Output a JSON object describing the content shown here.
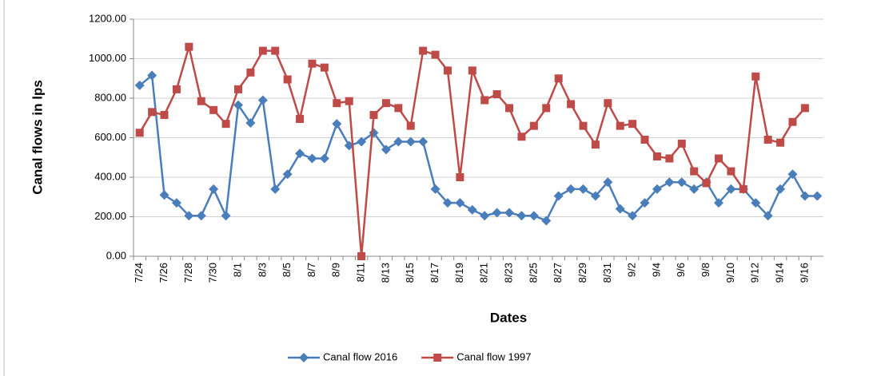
{
  "chart_data": {
    "type": "line",
    "y_label": "Canal flows in lps",
    "x_label": "Dates",
    "categories": [
      "7/24",
      null,
      "7/26",
      null,
      "7/28",
      null,
      "7/30",
      null,
      "8/1",
      null,
      "8/3",
      null,
      "8/5",
      null,
      "8/7",
      null,
      "8/9",
      null,
      "8/11",
      null,
      "8/13",
      null,
      "8/15",
      null,
      "8/17",
      null,
      "8/19",
      null,
      "8/21",
      null,
      "8/23",
      null,
      "8/25",
      null,
      "8/27",
      null,
      "8/29",
      null,
      "8/31",
      null,
      "9/2",
      null,
      "9/4",
      null,
      "9/6",
      null,
      "9/8",
      null,
      "9/10",
      null,
      "9/12",
      null,
      "9/14",
      null,
      "9/16",
      null
    ],
    "series": [
      {
        "name": "Canal flow 2016",
        "color": "#4a7ebb",
        "marker": "diamond",
        "values": [
          865,
          915,
          310,
          270,
          205,
          205,
          340,
          205,
          765,
          675,
          790,
          340,
          415,
          520,
          495,
          495,
          670,
          560,
          580,
          625,
          540,
          580,
          580,
          580,
          340,
          270,
          270,
          235,
          205,
          220,
          220,
          205,
          205,
          180,
          305,
          340,
          340,
          305,
          375,
          240,
          205,
          270,
          340,
          375,
          375,
          340,
          375,
          270,
          340,
          340,
          270,
          205,
          340,
          415,
          305,
          305
        ]
      },
      {
        "name": "Canal flow 1997",
        "color": "#be4b48",
        "marker": "square",
        "values": [
          625,
          730,
          715,
          845,
          1060,
          785,
          740,
          670,
          845,
          930,
          1040,
          1040,
          895,
          695,
          975,
          955,
          775,
          785,
          0,
          715,
          775,
          750,
          660,
          1040,
          1020,
          940,
          400,
          940,
          790,
          820,
          750,
          605,
          660,
          750,
          900,
          770,
          660,
          565,
          775,
          660,
          670,
          590,
          505,
          495,
          570,
          430,
          370,
          495,
          430,
          340,
          910,
          590,
          575,
          680,
          750,
          null
        ]
      }
    ],
    "ylim": [
      0,
      1200
    ],
    "yticks": [
      {
        "value": 0,
        "label": "0.00"
      },
      {
        "value": 200,
        "label": "200.00"
      },
      {
        "value": 400,
        "label": "400.00"
      },
      {
        "value": 600,
        "label": "600.00"
      },
      {
        "value": 800,
        "label": "800.00"
      },
      {
        "value": 1000,
        "label": "1000.00"
      },
      {
        "value": 1200,
        "label": "1200.00"
      }
    ],
    "grid": true,
    "legend": "bottom"
  }
}
